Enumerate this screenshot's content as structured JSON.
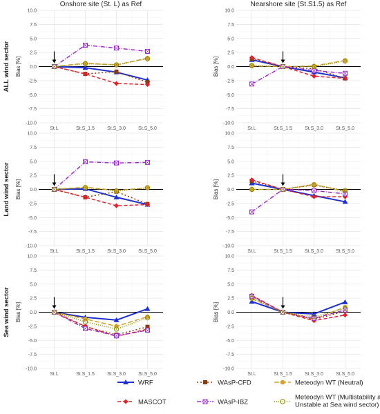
{
  "chart_data": {
    "type": "line",
    "column_titles": [
      "Onshore site (St. L) as Ref",
      "Nearshore site (St.S1.5) as Ref"
    ],
    "row_titles": [
      "ALL wind sector",
      "Land wind sector",
      "Sea wind sector"
    ],
    "ylabel": "Bias [%]",
    "x": [
      "St.L",
      "St.S_1.5",
      "St.S_3.0",
      "St.S_5.0"
    ],
    "ylim": [
      -10.0,
      10.0
    ],
    "yticks": [
      10.0,
      7.5,
      5.0,
      2.5,
      0.0,
      -2.5,
      -5.0,
      -7.5,
      -10.0
    ],
    "ytick_labels": [
      "10.0",
      "7.5",
      "5.0",
      "2.5",
      "0.0",
      "-2.5",
      "-5.0",
      "-7.5",
      "-10.0"
    ],
    "grid": true,
    "legend_position": "bottom",
    "series_styles": [
      {
        "name": "WRF",
        "color": "#1f2fd6",
        "dash": "",
        "marker": "triangle",
        "width": 2
      },
      {
        "name": "WAsP-CFD",
        "color": "#8b3a0f",
        "dash": "2,3",
        "marker": "square",
        "width": 1.5
      },
      {
        "name": "Meteodyn WT (Neutral)",
        "color": "#d4a12a",
        "dash": "7,3",
        "marker": "circle",
        "width": 1.5
      },
      {
        "name": "MASCOT",
        "color": "#e0202a",
        "dash": "5,3",
        "marker": "diamond",
        "width": 1.5
      },
      {
        "name": "WAsP-IBZ",
        "color": "#9b30c8",
        "dash": "6,2,1,2",
        "marker": "square-x",
        "width": 1.5
      },
      {
        "name": "Meteodyn WT (Multistability at ALL wind sector, Unstable at Sea wind sector)",
        "color": "#8a8a0a",
        "dash": "1,2",
        "marker": "circle-open",
        "width": 1.5
      }
    ],
    "panels": [
      {
        "row": 0,
        "col": 0,
        "ref_index": 0,
        "series": [
          {
            "name": "WRF",
            "values": [
              0.0,
              -0.2,
              -1.0,
              -2.4
            ]
          },
          {
            "name": "WAsP-CFD",
            "values": [
              0.0,
              -1.3,
              -0.9,
              -2.8
            ]
          },
          {
            "name": "Meteodyn WT (Neutral)",
            "values": [
              0.0,
              0.6,
              0.3,
              1.5
            ]
          },
          {
            "name": "MASCOT",
            "values": [
              0.0,
              -1.3,
              -3.0,
              -3.2
            ]
          },
          {
            "name": "WAsP-IBZ",
            "values": [
              0.0,
              3.8,
              3.3,
              2.7
            ]
          },
          {
            "name": "Meteodyn WT (Multistability at ALL wind sector, Unstable at Sea wind sector)",
            "values": [
              0.0,
              0.5,
              0.3,
              1.4
            ]
          }
        ]
      },
      {
        "row": 0,
        "col": 1,
        "ref_index": 1,
        "series": [
          {
            "name": "WRF",
            "values": [
              1.2,
              0.0,
              -1.0,
              -2.0
            ]
          },
          {
            "name": "WAsP-CFD",
            "values": [
              1.4,
              0.0,
              -0.4,
              -2.1
            ]
          },
          {
            "name": "Meteodyn WT (Neutral)",
            "values": [
              0.1,
              0.0,
              0.1,
              1.1
            ]
          },
          {
            "name": "MASCOT",
            "values": [
              1.6,
              0.0,
              -1.7,
              -2.1
            ]
          },
          {
            "name": "WAsP-IBZ",
            "values": [
              -3.1,
              0.0,
              -0.7,
              -1.2
            ]
          },
          {
            "name": "Meteodyn WT (Multistability at ALL wind sector, Unstable at Sea wind sector)",
            "values": [
              0.2,
              0.0,
              0.0,
              1.0
            ]
          }
        ]
      },
      {
        "row": 1,
        "col": 0,
        "ref_index": 0,
        "series": [
          {
            "name": "WRF",
            "values": [
              0.0,
              0.1,
              -1.4,
              -2.7
            ]
          },
          {
            "name": "WAsP-CFD",
            "values": [
              0.0,
              -1.4,
              -0.4,
              -2.6
            ]
          },
          {
            "name": "Meteodyn WT (Neutral)",
            "values": [
              0.0,
              0.4,
              -0.2,
              0.3
            ]
          },
          {
            "name": "MASCOT",
            "values": [
              0.0,
              -1.4,
              -2.9,
              -2.7
            ]
          },
          {
            "name": "WAsP-IBZ",
            "values": [
              0.0,
              4.9,
              4.7,
              4.8
            ]
          },
          {
            "name": "Meteodyn WT (Multistability at ALL wind sector, Unstable at Sea wind sector)",
            "values": [
              0.0,
              0.3,
              -0.3,
              0.3
            ]
          }
        ]
      },
      {
        "row": 1,
        "col": 1,
        "ref_index": 1,
        "series": [
          {
            "name": "WRF",
            "values": [
              1.1,
              0.0,
              -1.1,
              -2.2
            ]
          },
          {
            "name": "WAsP-CFD",
            "values": [
              1.5,
              0.0,
              0.8,
              -0.3
            ]
          },
          {
            "name": "Meteodyn WT (Neutral)",
            "values": [
              0.0,
              0.0,
              0.9,
              -0.4
            ]
          },
          {
            "name": "MASCOT",
            "values": [
              1.7,
              0.0,
              -1.3,
              -1.3
            ]
          },
          {
            "name": "WAsP-IBZ",
            "values": [
              -4.0,
              0.0,
              -0.2,
              -0.8
            ]
          },
          {
            "name": "Meteodyn WT (Multistability at ALL wind sector, Unstable at Sea wind sector)",
            "values": [
              0.0,
              0.0,
              0.8,
              -0.2
            ]
          }
        ]
      },
      {
        "row": 2,
        "col": 0,
        "ref_index": 0,
        "series": [
          {
            "name": "WRF",
            "values": [
              0.0,
              -0.9,
              -1.4,
              0.6
            ]
          },
          {
            "name": "WAsP-CFD",
            "values": [
              0.0,
              -2.6,
              -4.0,
              -2.6
            ]
          },
          {
            "name": "Meteodyn WT (Neutral)",
            "values": [
              0.0,
              -1.2,
              -2.5,
              -0.8
            ]
          },
          {
            "name": "MASCOT",
            "values": [
              0.0,
              -2.5,
              -4.3,
              -3.0
            ]
          },
          {
            "name": "WAsP-IBZ",
            "values": [
              0.0,
              -2.9,
              -4.2,
              -3.2
            ]
          },
          {
            "name": "Meteodyn WT (Multistability at ALL wind sector, Unstable at Sea wind sector)",
            "values": [
              0.0,
              -1.7,
              -3.0,
              -1.0
            ]
          }
        ]
      },
      {
        "row": 2,
        "col": 1,
        "ref_index": 1,
        "series": [
          {
            "name": "WRF",
            "values": [
              1.9,
              0.0,
              -0.3,
              1.8
            ]
          },
          {
            "name": "WAsP-CFD",
            "values": [
              2.9,
              0.0,
              -1.3,
              0.2
            ]
          },
          {
            "name": "Meteodyn WT (Neutral)",
            "values": [
              2.4,
              0.0,
              -1.2,
              0.9
            ]
          },
          {
            "name": "MASCOT",
            "values": [
              3.0,
              0.0,
              -1.5,
              -0.5
            ]
          },
          {
            "name": "WAsP-IBZ",
            "values": [
              2.8,
              0.0,
              -1.1,
              0.4
            ]
          },
          {
            "name": "Meteodyn WT (Multistability at ALL wind sector, Unstable at Sea wind sector)",
            "values": [
              2.5,
              0.0,
              -0.8,
              0.7
            ]
          }
        ]
      }
    ],
    "legend": [
      {
        "name": "WRF",
        "label": "WRF"
      },
      {
        "name": "WAsP-CFD",
        "label": "WAsP-CFD"
      },
      {
        "name": "Meteodyn WT (Neutral)",
        "label": "Meteodyn WT (Neutral)"
      },
      {
        "name": "MASCOT",
        "label": "MASCOT"
      },
      {
        "name": "WAsP-IBZ",
        "label": "WAsP-IBZ"
      },
      {
        "name": "Meteodyn WT (Multistability at ALL wind sector, Unstable at Sea wind sector)",
        "label_lines": [
          "Meteodyn WT (Multistability at ALL wind sector,",
          "Unstable at Sea wind sector)"
        ]
      }
    ]
  }
}
